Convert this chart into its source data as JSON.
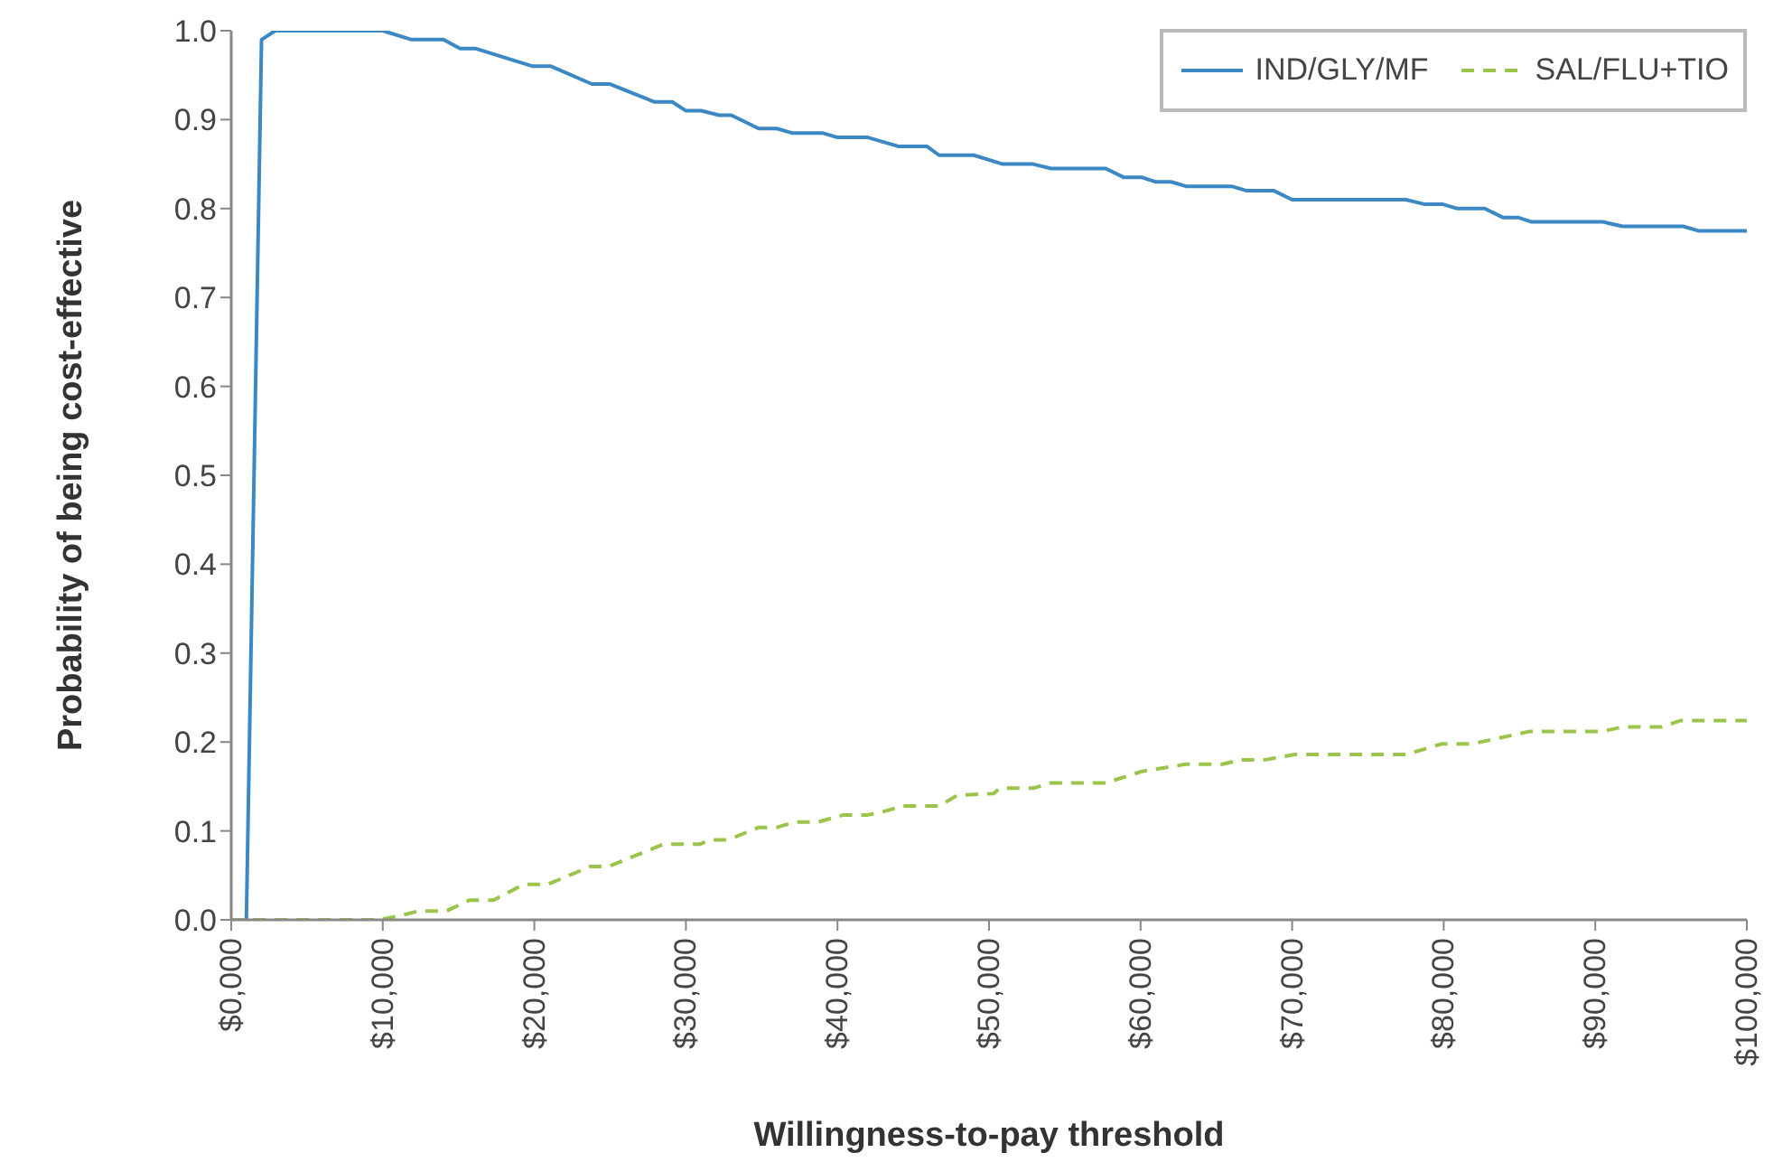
{
  "chart_data": {
    "type": "line",
    "xlabel": "Willingness-to-pay threshold",
    "ylabel": "Probability of being cost-effective",
    "xlim": [
      0,
      100000
    ],
    "xticks": [
      {
        "value": 0,
        "label": "$0,000"
      },
      {
        "value": 10000,
        "label": "$10,000"
      },
      {
        "value": 20000,
        "label": "$20,000"
      },
      {
        "value": 30000,
        "label": "$30,000"
      },
      {
        "value": 40000,
        "label": "$40,000"
      },
      {
        "value": 50000,
        "label": "$50,000"
      },
      {
        "value": 60000,
        "label": "$60,000"
      },
      {
        "value": 70000,
        "label": "$70,000"
      },
      {
        "value": 80000,
        "label": "$80,000"
      },
      {
        "value": 90000,
        "label": "$90,000"
      },
      {
        "value": 100000,
        "label": "$100,000"
      }
    ],
    "ylim": [
      0,
      1
    ],
    "yticks": [
      {
        "value": 0,
        "label": "0.0"
      },
      0.1,
      0.2,
      0.3,
      0.4,
      0.5,
      0.6,
      0.7,
      0.8,
      0.9,
      {
        "value": 1,
        "label": "1.0"
      }
    ],
    "legend": "top right",
    "series": [
      {
        "name": "IND/GLY/MF",
        "color": "#3b88c4",
        "line_style": "solid",
        "x": [
          1000,
          2000,
          2900,
          10000,
          11900,
          14000,
          15100,
          16100,
          19900,
          21100,
          23800,
          25000,
          27900,
          29100,
          30000,
          31000,
          32200,
          33000,
          34800,
          36000,
          37000,
          39000,
          40000,
          42000,
          44000,
          45900,
          46700,
          49000,
          50900,
          52900,
          54100,
          57700,
          58900,
          60100,
          61000,
          62000,
          63000,
          66000,
          67000,
          68800,
          70000,
          77500,
          78700,
          79900,
          80900,
          82700,
          83900,
          84900,
          85800,
          90500,
          91800,
          95800,
          96800,
          100000
        ],
        "values": [
          0,
          0.99,
          1.0,
          1.0,
          0.99,
          0.99,
          0.98,
          0.98,
          0.96,
          0.96,
          0.94,
          0.94,
          0.92,
          0.92,
          0.91,
          0.91,
          0.905,
          0.905,
          0.89,
          0.89,
          0.885,
          0.885,
          0.88,
          0.88,
          0.87,
          0.87,
          0.86,
          0.86,
          0.85,
          0.85,
          0.845,
          0.845,
          0.835,
          0.835,
          0.83,
          0.83,
          0.825,
          0.825,
          0.82,
          0.82,
          0.81,
          0.81,
          0.805,
          0.805,
          0.8,
          0.8,
          0.79,
          0.79,
          0.785,
          0.785,
          0.78,
          0.78,
          0.775,
          0.775
        ]
      },
      {
        "name": "SAL/FLU+TIO",
        "color": "#9bc54a",
        "line_style": "dashed",
        "x": [
          0,
          9800,
          11200,
          12400,
          14200,
          15700,
          17300,
          19300,
          20900,
          23700,
          24900,
          28500,
          30900,
          31600,
          32800,
          34800,
          36000,
          37200,
          38700,
          40400,
          42000,
          43100,
          44300,
          46700,
          47900,
          50300,
          50700,
          52900,
          54100,
          57700,
          60100,
          63000,
          65400,
          66600,
          68200,
          70200,
          77500,
          79900,
          81900,
          85700,
          90500,
          91800,
          94400,
          95600,
          100000
        ],
        "values": [
          0,
          0,
          0.005,
          0.01,
          0.01,
          0.022,
          0.022,
          0.04,
          0.04,
          0.06,
          0.06,
          0.085,
          0.085,
          0.09,
          0.09,
          0.104,
          0.104,
          0.11,
          0.11,
          0.118,
          0.118,
          0.122,
          0.128,
          0.128,
          0.14,
          0.142,
          0.148,
          0.148,
          0.154,
          0.154,
          0.167,
          0.175,
          0.175,
          0.18,
          0.18,
          0.186,
          0.186,
          0.198,
          0.198,
          0.212,
          0.212,
          0.217,
          0.217,
          0.224,
          0.224
        ]
      }
    ]
  }
}
